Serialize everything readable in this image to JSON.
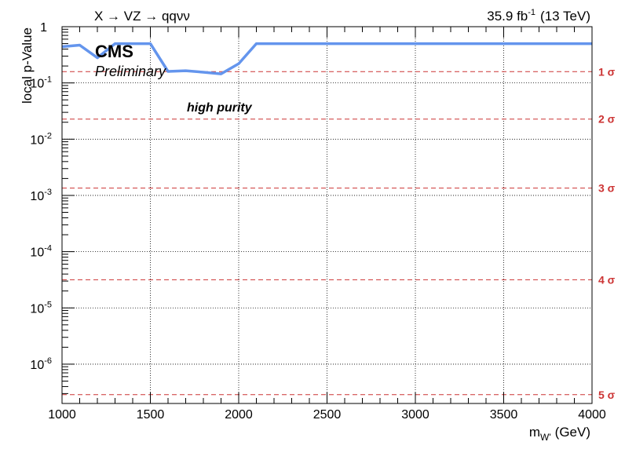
{
  "chart_data": {
    "type": "line",
    "title_left": "X → VZ → qqνν",
    "lumi": {
      "value": "35.9 fb",
      "exp": "-1",
      "energy": "(13 TeV)"
    },
    "cms_label": "CMS",
    "preliminary_label": "Preliminary",
    "category_label": "high purity",
    "xlabel": {
      "main": "m",
      "sub": "W'",
      "unit": "(GeV)"
    },
    "ylabel": "local p-Value",
    "xlim": [
      1000,
      4000
    ],
    "ylim": [
      2e-07,
      1.0
    ],
    "yscale": "log",
    "grid": true,
    "x_ticks": [
      {
        "value": 1000,
        "label": "1000"
      },
      {
        "value": 1500,
        "label": "1500"
      },
      {
        "value": 2000,
        "label": "2000"
      },
      {
        "value": 2500,
        "label": "2500"
      },
      {
        "value": 3000,
        "label": "3000"
      },
      {
        "value": 3500,
        "label": "3500"
      },
      {
        "value": 4000,
        "label": "4000"
      }
    ],
    "y_ticks": [
      {
        "value": 1,
        "base": "1",
        "exp": ""
      },
      {
        "value": 0.1,
        "base": "10",
        "exp": "-1"
      },
      {
        "value": 0.01,
        "base": "10",
        "exp": "-2"
      },
      {
        "value": 0.001,
        "base": "10",
        "exp": "-3"
      },
      {
        "value": 0.0001,
        "base": "10",
        "exp": "-4"
      },
      {
        "value": 1e-05,
        "base": "10",
        "exp": "-5"
      },
      {
        "value": 1e-06,
        "base": "10",
        "exp": "-6"
      }
    ],
    "sigma_lines": [
      {
        "value": 0.1587,
        "label": "1 σ"
      },
      {
        "value": 0.02275,
        "label": "2 σ"
      },
      {
        "value": 0.00135,
        "label": "3 σ"
      },
      {
        "value": 3.17e-05,
        "label": "4 σ"
      },
      {
        "value": 2.87e-07,
        "label": "5 σ"
      }
    ],
    "series": [
      {
        "color": "#6495ed",
        "x": [
          1000,
          1100,
          1200,
          1300,
          1400,
          1500,
          1600,
          1700,
          1800,
          1900,
          2000,
          2100,
          2200,
          2500,
          3000,
          3500,
          4000
        ],
        "y": [
          0.44,
          0.47,
          0.28,
          0.5,
          0.5,
          0.5,
          0.16,
          0.165,
          0.155,
          0.145,
          0.22,
          0.5,
          0.5,
          0.5,
          0.5,
          0.5,
          0.5
        ]
      }
    ],
    "colors": {
      "sigma": "#cc3333",
      "grid": "#000000"
    }
  }
}
